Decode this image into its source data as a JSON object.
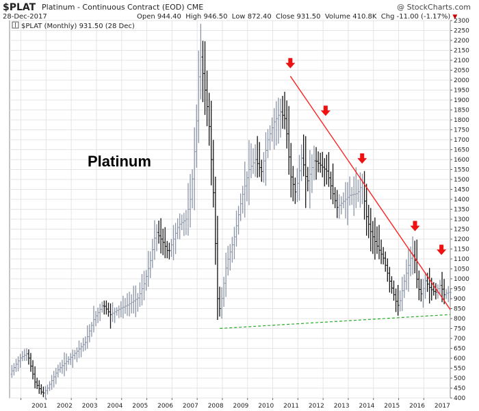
{
  "header": {
    "symbol": "$PLAT",
    "name": "Platinum - Continuous Contract (EOD)",
    "exchange": "CME",
    "date": "28-Dec-2017",
    "open_label": "Open",
    "open": "944.40",
    "high_label": "High",
    "high": "946.50",
    "low_label": "Low",
    "low": "872.40",
    "close_label": "Close",
    "close": "931.50",
    "volume_label": "Volume",
    "volume": "410.8K",
    "chg_label": "Chg",
    "chg": "-11.00 (-1.17%)",
    "brand": "@ StockCharts.com"
  },
  "chart_data": {
    "type": "ohlc-bar",
    "legend": "$PLAT (Monthly) 931.50 (28 Dec)",
    "annotation": "Platinum",
    "ylim": [
      400,
      2300
    ],
    "y_ticks": [
      400,
      450,
      500,
      550,
      600,
      650,
      700,
      750,
      800,
      850,
      900,
      950,
      1000,
      1050,
      1100,
      1150,
      1200,
      1250,
      1300,
      1350,
      1400,
      1450,
      1500,
      1550,
      1600,
      1650,
      1700,
      1750,
      1800,
      1850,
      1900,
      1950,
      2000,
      2050,
      2100,
      2150,
      2200,
      2250,
      2300
    ],
    "y_tick_labels": [
      "400",
      "450",
      "500",
      "550",
      "600",
      "650",
      "700",
      "750",
      "800",
      "850",
      "900",
      "950",
      "1000",
      "1050",
      "1100",
      "1150",
      "1200",
      "1250",
      "1300",
      "1350",
      "1400",
      "1450",
      "1500",
      "1550",
      "1600",
      "1650",
      "1700",
      "1750",
      "1800",
      "1850",
      "1900",
      "1950",
      "2000",
      "2050",
      "2100",
      "2150",
      "2200",
      "2250",
      "2300"
    ],
    "x_range": [
      2000.55,
      2018.05
    ],
    "x_ticks": [
      2001,
      2002,
      2003,
      2004,
      2005,
      2006,
      2007,
      2008,
      2009,
      2010,
      2011,
      2012,
      2013,
      2014,
      2015,
      2016,
      2017
    ],
    "x_tick_labels": [
      "2001",
      "2002",
      "2003",
      "2004",
      "2005",
      "2006",
      "2007",
      "2008",
      "2009",
      "2010",
      "2011",
      "2012",
      "2013",
      "2014",
      "2015",
      "2016",
      "2017"
    ],
    "anchors": [
      [
        2000.6,
        520
      ],
      [
        2001.0,
        600
      ],
      [
        2001.3,
        625
      ],
      [
        2001.6,
        480
      ],
      [
        2001.9,
        420
      ],
      [
        2002.1,
        450
      ],
      [
        2002.5,
        540
      ],
      [
        2002.9,
        590
      ],
      [
        2003.3,
        640
      ],
      [
        2003.6,
        680
      ],
      [
        2003.95,
        800
      ],
      [
        2004.3,
        870
      ],
      [
        2004.6,
        820
      ],
      [
        2004.9,
        845
      ],
      [
        2005.3,
        870
      ],
      [
        2005.7,
        905
      ],
      [
        2005.95,
        980
      ],
      [
        2006.2,
        1100
      ],
      [
        2006.4,
        1240
      ],
      [
        2006.7,
        1180
      ],
      [
        2006.9,
        1130
      ],
      [
        2007.3,
        1270
      ],
      [
        2007.6,
        1300
      ],
      [
        2007.8,
        1420
      ],
      [
        2008.0,
        1750
      ],
      [
        2008.15,
        2150
      ],
      [
        2008.3,
        2000
      ],
      [
        2008.5,
        1800
      ],
      [
        2008.7,
        1400
      ],
      [
        2008.85,
        900
      ],
      [
        2008.95,
        840
      ],
      [
        2009.2,
        1070
      ],
      [
        2009.5,
        1200
      ],
      [
        2009.8,
        1400
      ],
      [
        2010.1,
        1550
      ],
      [
        2010.35,
        1600
      ],
      [
        2010.6,
        1540
      ],
      [
        2010.85,
        1700
      ],
      [
        2011.1,
        1790
      ],
      [
        2011.35,
        1840
      ],
      [
        2011.55,
        1800
      ],
      [
        2011.75,
        1520
      ],
      [
        2011.95,
        1430
      ],
      [
        2012.2,
        1620
      ],
      [
        2012.4,
        1480
      ],
      [
        2012.7,
        1600
      ],
      [
        2012.95,
        1570
      ],
      [
        2013.2,
        1540
      ],
      [
        2013.45,
        1420
      ],
      [
        2013.6,
        1360
      ],
      [
        2013.85,
        1390
      ],
      [
        2014.1,
        1420
      ],
      [
        2014.4,
        1430
      ],
      [
        2014.6,
        1480
      ],
      [
        2014.75,
        1320
      ],
      [
        2014.95,
        1230
      ],
      [
        2015.2,
        1160
      ],
      [
        2015.45,
        1100
      ],
      [
        2015.7,
        980
      ],
      [
        2015.95,
        880
      ],
      [
        2016.05,
        860
      ],
      [
        2016.25,
        980
      ],
      [
        2016.5,
        1100
      ],
      [
        2016.65,
        1130
      ],
      [
        2016.8,
        960
      ],
      [
        2016.95,
        920
      ],
      [
        2017.1,
        990
      ],
      [
        2017.3,
        950
      ],
      [
        2017.5,
        930
      ],
      [
        2017.7,
        970
      ],
      [
        2017.85,
        920
      ],
      [
        2017.98,
        931.5
      ]
    ],
    "resistance_line": {
      "from": [
        2011.7,
        2020
      ],
      "to": [
        2018.05,
        845
      ],
      "color": "#ff2020"
    },
    "support_line": {
      "from": [
        2008.9,
        750
      ],
      "to": [
        2018.05,
        820
      ],
      "color": "#22aa22"
    },
    "arrows": [
      [
        2011.7,
        2070
      ],
      [
        2013.1,
        1830
      ],
      [
        2014.55,
        1590
      ],
      [
        2016.65,
        1250
      ],
      [
        2017.7,
        1130
      ]
    ],
    "arrow_color": "#ee1111"
  }
}
